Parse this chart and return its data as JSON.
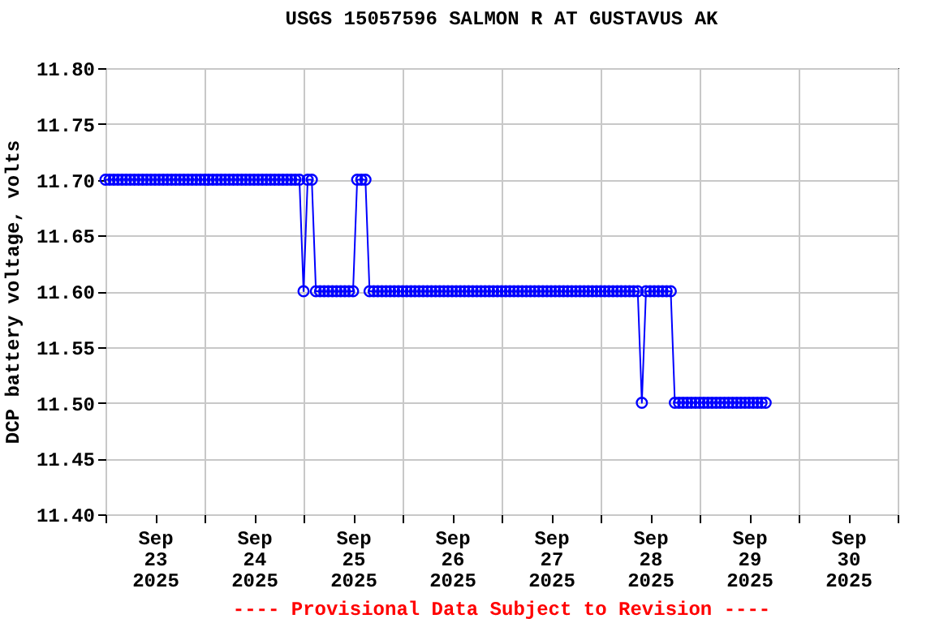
{
  "chart_data": {
    "type": "line",
    "title": "USGS 15057596 SALMON R AT GUSTAVUS AK",
    "ylabel": "DCP battery voltage, volts",
    "annotations": [
      "---- Provisional Data Subject to Revision ----"
    ],
    "xlim": [
      "2025-09-23T00:00",
      "2025-10-01T00:00"
    ],
    "xticks": [
      {
        "value": "2025-09-23T00:00",
        "label": null
      },
      {
        "value": "2025-09-23T12:00",
        "label": "Sep\n23\n2025"
      },
      {
        "value": "2025-09-24T00:00",
        "label": null
      },
      {
        "value": "2025-09-24T12:00",
        "label": "Sep\n24\n2025"
      },
      {
        "value": "2025-09-25T00:00",
        "label": null
      },
      {
        "value": "2025-09-25T12:00",
        "label": "Sep\n25\n2025"
      },
      {
        "value": "2025-09-26T00:00",
        "label": null
      },
      {
        "value": "2025-09-26T12:00",
        "label": "Sep\n26\n2025"
      },
      {
        "value": "2025-09-27T00:00",
        "label": null
      },
      {
        "value": "2025-09-27T12:00",
        "label": "Sep\n27\n2025"
      },
      {
        "value": "2025-09-28T00:00",
        "label": null
      },
      {
        "value": "2025-09-28T12:00",
        "label": "Sep\n28\n2025"
      },
      {
        "value": "2025-09-29T00:00",
        "label": null
      },
      {
        "value": "2025-09-29T12:00",
        "label": "Sep\n29\n2025"
      },
      {
        "value": "2025-09-30T00:00",
        "label": null
      },
      {
        "value": "2025-09-30T12:00",
        "label": "Sep\n30\n2025"
      },
      {
        "value": "2025-10-01T00:00",
        "label": null
      }
    ],
    "ylim": [
      11.4,
      11.8
    ],
    "yticks": [
      {
        "value": 11.4,
        "label": "11.40"
      },
      {
        "value": 11.45,
        "label": "11.45"
      },
      {
        "value": 11.5,
        "label": "11.50"
      },
      {
        "value": 11.55,
        "label": "11.55"
      },
      {
        "value": 11.6,
        "label": "11.60"
      },
      {
        "value": 11.65,
        "label": "11.65"
      },
      {
        "value": 11.7,
        "label": "11.70"
      },
      {
        "value": 11.75,
        "label": "11.75"
      },
      {
        "value": 11.8,
        "label": "11.80"
      }
    ],
    "grid": true,
    "marker": "circle",
    "legend": false,
    "series": [
      {
        "color": "#0000ff",
        "x": [
          "2025-09-23T00:00",
          "2025-09-23T01:00",
          "2025-09-23T02:00",
          "2025-09-23T03:00",
          "2025-09-23T04:00",
          "2025-09-23T05:00",
          "2025-09-23T06:00",
          "2025-09-23T07:00",
          "2025-09-23T08:00",
          "2025-09-23T09:00",
          "2025-09-23T10:00",
          "2025-09-23T11:00",
          "2025-09-23T12:00",
          "2025-09-23T13:00",
          "2025-09-23T14:00",
          "2025-09-23T15:00",
          "2025-09-23T16:00",
          "2025-09-23T17:00",
          "2025-09-23T18:00",
          "2025-09-23T19:00",
          "2025-09-23T20:00",
          "2025-09-23T21:00",
          "2025-09-23T22:00",
          "2025-09-23T23:00",
          "2025-09-24T00:00",
          "2025-09-24T01:00",
          "2025-09-24T02:00",
          "2025-09-24T03:00",
          "2025-09-24T04:00",
          "2025-09-24T05:00",
          "2025-09-24T06:00",
          "2025-09-24T07:00",
          "2025-09-24T08:00",
          "2025-09-24T09:00",
          "2025-09-24T10:00",
          "2025-09-24T11:00",
          "2025-09-24T12:00",
          "2025-09-24T13:00",
          "2025-09-24T14:00",
          "2025-09-24T15:00",
          "2025-09-24T16:00",
          "2025-09-24T17:00",
          "2025-09-24T18:00",
          "2025-09-24T19:00",
          "2025-09-24T20:00",
          "2025-09-24T21:00",
          "2025-09-24T22:00",
          "2025-09-24T23:00",
          "2025-09-25T00:00",
          "2025-09-25T01:00",
          "2025-09-25T02:00",
          "2025-09-25T03:00",
          "2025-09-25T04:00",
          "2025-09-25T05:00",
          "2025-09-25T06:00",
          "2025-09-25T07:00",
          "2025-09-25T08:00",
          "2025-09-25T09:00",
          "2025-09-25T10:00",
          "2025-09-25T11:00",
          "2025-09-25T12:00",
          "2025-09-25T13:00",
          "2025-09-25T14:00",
          "2025-09-25T15:00",
          "2025-09-25T16:00",
          "2025-09-25T17:00",
          "2025-09-25T18:00",
          "2025-09-25T19:00",
          "2025-09-25T20:00",
          "2025-09-25T21:00",
          "2025-09-25T22:00",
          "2025-09-25T23:00",
          "2025-09-26T00:00",
          "2025-09-26T01:00",
          "2025-09-26T02:00",
          "2025-09-26T03:00",
          "2025-09-26T04:00",
          "2025-09-26T05:00",
          "2025-09-26T06:00",
          "2025-09-26T07:00",
          "2025-09-26T08:00",
          "2025-09-26T09:00",
          "2025-09-26T10:00",
          "2025-09-26T11:00",
          "2025-09-26T12:00",
          "2025-09-26T13:00",
          "2025-09-26T14:00",
          "2025-09-26T15:00",
          "2025-09-26T16:00",
          "2025-09-26T17:00",
          "2025-09-26T18:00",
          "2025-09-26T19:00",
          "2025-09-26T20:00",
          "2025-09-26T21:00",
          "2025-09-26T22:00",
          "2025-09-26T23:00",
          "2025-09-27T00:00",
          "2025-09-27T01:00",
          "2025-09-27T02:00",
          "2025-09-27T03:00",
          "2025-09-27T04:00",
          "2025-09-27T05:00",
          "2025-09-27T06:00",
          "2025-09-27T07:00",
          "2025-09-27T08:00",
          "2025-09-27T09:00",
          "2025-09-27T10:00",
          "2025-09-27T11:00",
          "2025-09-27T12:00",
          "2025-09-27T13:00",
          "2025-09-27T14:00",
          "2025-09-27T15:00",
          "2025-09-27T16:00",
          "2025-09-27T17:00",
          "2025-09-27T18:00",
          "2025-09-27T19:00",
          "2025-09-27T20:00",
          "2025-09-27T21:00",
          "2025-09-27T22:00",
          "2025-09-27T23:00",
          "2025-09-28T00:00",
          "2025-09-28T01:00",
          "2025-09-28T02:00",
          "2025-09-28T03:00",
          "2025-09-28T04:00",
          "2025-09-28T05:00",
          "2025-09-28T06:00",
          "2025-09-28T07:00",
          "2025-09-28T08:00",
          "2025-09-28T09:00",
          "2025-09-28T10:00",
          "2025-09-28T11:00",
          "2025-09-28T12:00",
          "2025-09-28T13:00",
          "2025-09-28T14:00",
          "2025-09-28T15:00",
          "2025-09-28T16:00",
          "2025-09-28T17:00",
          "2025-09-28T18:00",
          "2025-09-28T19:00",
          "2025-09-28T20:00",
          "2025-09-28T21:00",
          "2025-09-28T22:00",
          "2025-09-28T23:00",
          "2025-09-29T00:00",
          "2025-09-29T01:00",
          "2025-09-29T02:00",
          "2025-09-29T03:00",
          "2025-09-29T04:00",
          "2025-09-29T05:00",
          "2025-09-29T06:00",
          "2025-09-29T07:00",
          "2025-09-29T08:00",
          "2025-09-29T09:00",
          "2025-09-29T10:00",
          "2025-09-29T11:00",
          "2025-09-29T12:00",
          "2025-09-29T13:00",
          "2025-09-29T14:00",
          "2025-09-29T15:00",
          "2025-09-29T16:00"
        ],
        "values": [
          11.7,
          11.7,
          11.7,
          11.7,
          11.7,
          11.7,
          11.7,
          11.7,
          11.7,
          11.7,
          11.7,
          11.7,
          11.7,
          11.7,
          11.7,
          11.7,
          11.7,
          11.7,
          11.7,
          11.7,
          11.7,
          11.7,
          11.7,
          11.7,
          11.7,
          11.7,
          11.7,
          11.7,
          11.7,
          11.7,
          11.7,
          11.7,
          11.7,
          11.7,
          11.7,
          11.7,
          11.7,
          11.7,
          11.7,
          11.7,
          11.7,
          11.7,
          11.7,
          11.7,
          11.7,
          11.7,
          11.7,
          11.7,
          11.6,
          11.7,
          11.7,
          11.6,
          11.6,
          11.6,
          11.6,
          11.6,
          11.6,
          11.6,
          11.6,
          11.6,
          11.6,
          11.7,
          11.7,
          11.7,
          11.6,
          11.6,
          11.6,
          11.6,
          11.6,
          11.6,
          11.6,
          11.6,
          11.6,
          11.6,
          11.6,
          11.6,
          11.6,
          11.6,
          11.6,
          11.6,
          11.6,
          11.6,
          11.6,
          11.6,
          11.6,
          11.6,
          11.6,
          11.6,
          11.6,
          11.6,
          11.6,
          11.6,
          11.6,
          11.6,
          11.6,
          11.6,
          11.6,
          11.6,
          11.6,
          11.6,
          11.6,
          11.6,
          11.6,
          11.6,
          11.6,
          11.6,
          11.6,
          11.6,
          11.6,
          11.6,
          11.6,
          11.6,
          11.6,
          11.6,
          11.6,
          11.6,
          11.6,
          11.6,
          11.6,
          11.6,
          11.6,
          11.6,
          11.6,
          11.6,
          11.6,
          11.6,
          11.6,
          11.6,
          11.6,
          11.6,
          11.5,
          11.6,
          11.6,
          11.6,
          11.6,
          11.6,
          11.6,
          11.6,
          11.5,
          11.5,
          11.5,
          11.5,
          11.5,
          11.5,
          11.5,
          11.5,
          11.5,
          11.5,
          11.5,
          11.5,
          11.5,
          11.5,
          11.5,
          11.5,
          11.5,
          11.5,
          11.5,
          11.5,
          11.5,
          11.5,
          11.5
        ]
      }
    ]
  }
}
